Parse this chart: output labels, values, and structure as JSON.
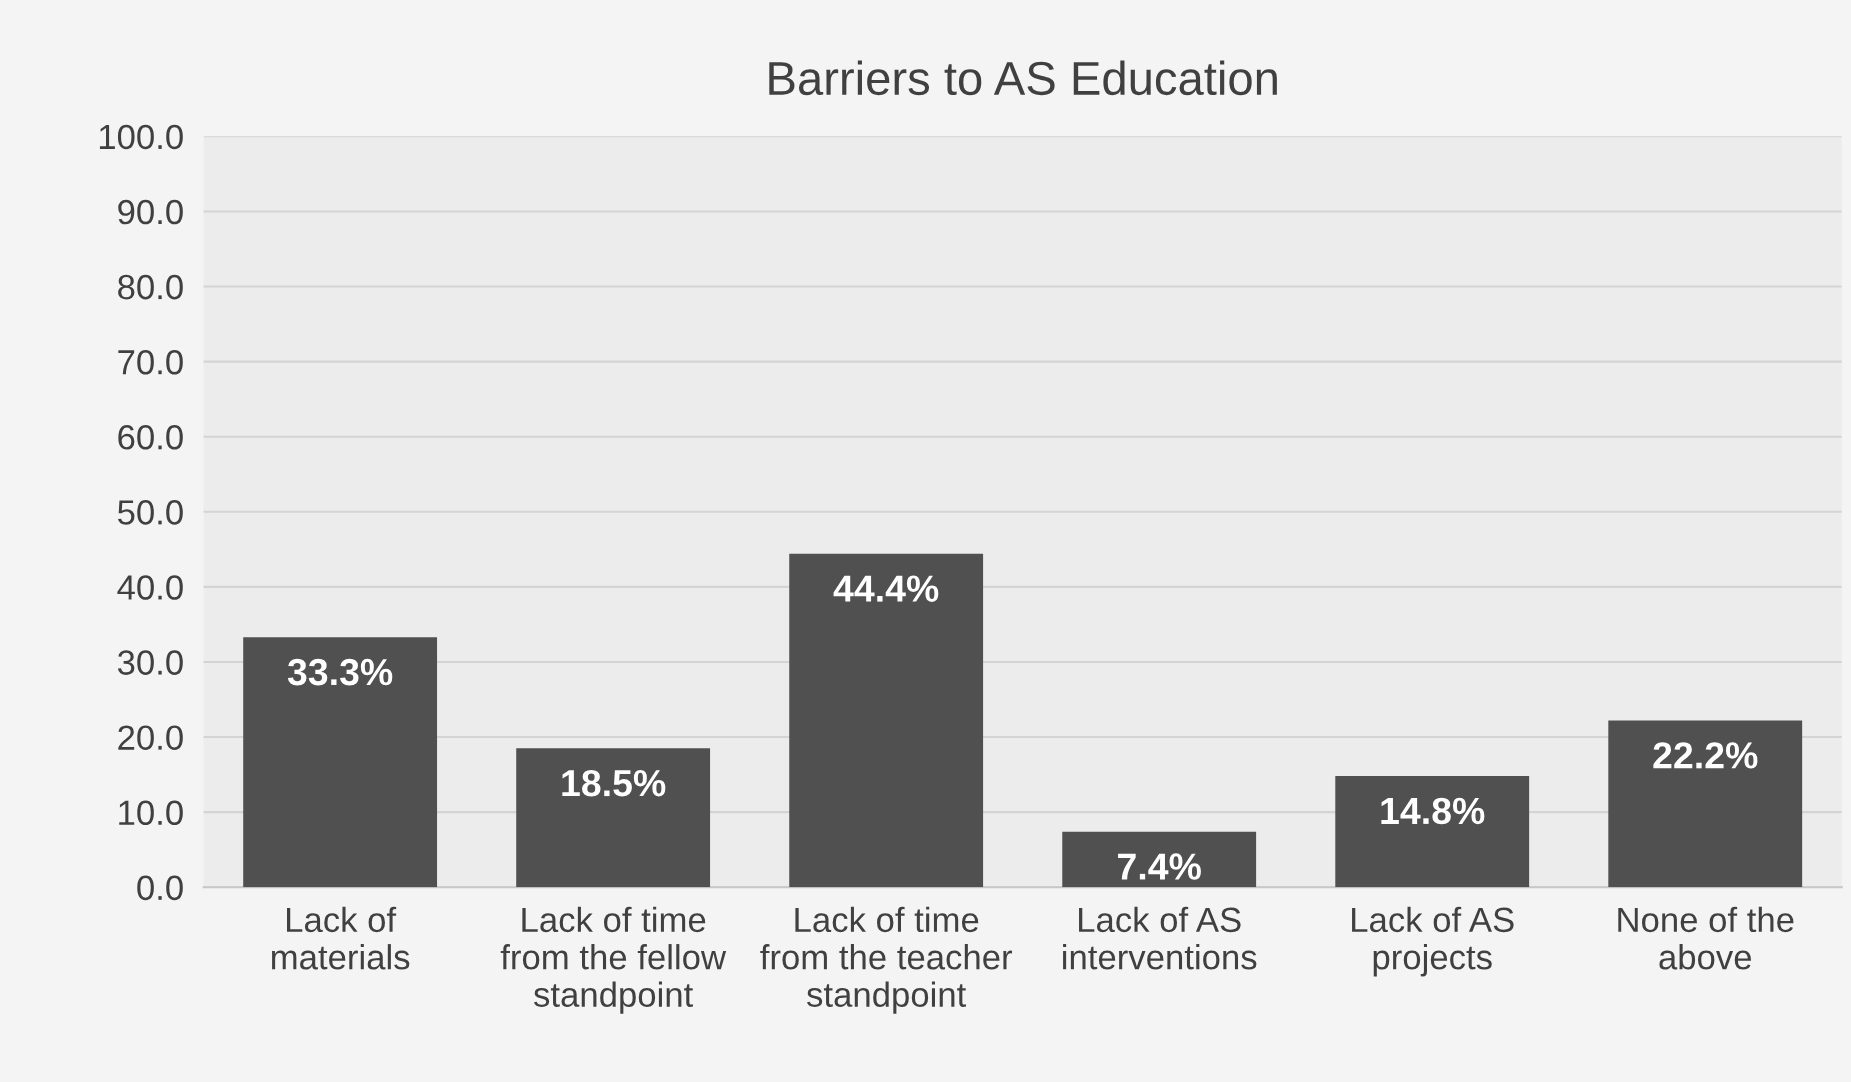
{
  "chart_data": {
    "type": "bar",
    "title": "Barriers to AS Education",
    "categories": [
      "Lack of\nmaterials",
      "Lack of time\nfrom the fellow\nstandpoint",
      "Lack of time\nfrom the teacher\nstandpoint",
      "Lack of AS\ninterventions",
      "Lack of AS\nprojects",
      "None of the\nabove"
    ],
    "values": [
      33.3,
      18.5,
      44.4,
      7.4,
      14.8,
      22.2
    ],
    "value_labels": [
      "33.3%",
      "18.5%",
      "44.4%",
      "7.4%",
      "14.8%",
      "22.2%"
    ],
    "color": "#505050",
    "ylim": [
      0,
      100
    ],
    "yticks": [
      {
        "value": 0,
        "label": "0.0"
      },
      {
        "value": 10,
        "label": "10.0"
      },
      {
        "value": 20,
        "label": "20.0"
      },
      {
        "value": 30,
        "label": "30.0"
      },
      {
        "value": 40,
        "label": "40.0"
      },
      {
        "value": 50,
        "label": "50.0"
      },
      {
        "value": 60,
        "label": "60.0"
      },
      {
        "value": 70,
        "label": "70.0"
      },
      {
        "value": 80,
        "label": "80.0"
      },
      {
        "value": 90,
        "label": "90.0"
      },
      {
        "value": 100,
        "label": "100.0"
      }
    ],
    "grid": "y"
  }
}
